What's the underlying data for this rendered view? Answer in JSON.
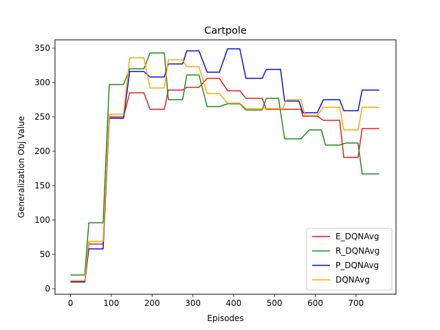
{
  "chart_data": {
    "type": "line",
    "title": "Cartpole",
    "xlabel": "Episodes",
    "ylabel": "Generalization Obj Value",
    "xlim": [
      -38,
      798
    ],
    "ylim": [
      -8,
      362
    ],
    "xticks": [
      0,
      100,
      200,
      300,
      400,
      500,
      600,
      700
    ],
    "yticks": [
      0,
      50,
      100,
      150,
      200,
      250,
      300,
      350
    ],
    "grid": false,
    "legend_position": "lower-right",
    "series": [
      {
        "name": "E_DQNAvg",
        "color": "#e31a1c",
        "points": [
          [
            0,
            10
          ],
          [
            35,
            10
          ],
          [
            45,
            65
          ],
          [
            80,
            65
          ],
          [
            95,
            250
          ],
          [
            130,
            250
          ],
          [
            145,
            285
          ],
          [
            180,
            285
          ],
          [
            195,
            261
          ],
          [
            230,
            261
          ],
          [
            240,
            289
          ],
          [
            275,
            289
          ],
          [
            285,
            293
          ],
          [
            315,
            293
          ],
          [
            335,
            306
          ],
          [
            365,
            306
          ],
          [
            385,
            288
          ],
          [
            415,
            288
          ],
          [
            430,
            277
          ],
          [
            470,
            277
          ],
          [
            480,
            261
          ],
          [
            520,
            261
          ],
          [
            565,
            261
          ],
          [
            570,
            251
          ],
          [
            605,
            251
          ],
          [
            620,
            245
          ],
          [
            660,
            245
          ],
          [
            670,
            191
          ],
          [
            705,
            191
          ],
          [
            715,
            233
          ],
          [
            757,
            233
          ]
        ]
      },
      {
        "name": "R_DQNAvg",
        "color": "#1a8a1a",
        "points": [
          [
            0,
            20
          ],
          [
            35,
            20
          ],
          [
            45,
            96
          ],
          [
            80,
            96
          ],
          [
            95,
            297
          ],
          [
            130,
            297
          ],
          [
            145,
            320
          ],
          [
            180,
            320
          ],
          [
            195,
            343
          ],
          [
            230,
            343
          ],
          [
            240,
            275
          ],
          [
            275,
            275
          ],
          [
            285,
            311
          ],
          [
            315,
            311
          ],
          [
            335,
            265
          ],
          [
            365,
            265
          ],
          [
            385,
            269
          ],
          [
            415,
            269
          ],
          [
            430,
            260
          ],
          [
            470,
            260
          ],
          [
            480,
            277
          ],
          [
            510,
            277
          ],
          [
            525,
            218
          ],
          [
            565,
            218
          ],
          [
            585,
            231
          ],
          [
            615,
            231
          ],
          [
            625,
            209
          ],
          [
            660,
            209
          ],
          [
            675,
            212
          ],
          [
            705,
            212
          ],
          [
            715,
            167
          ],
          [
            757,
            167
          ]
        ]
      },
      {
        "name": "P_DQNAvg",
        "color": "#0b0bd6",
        "points": [
          [
            0,
            10
          ],
          [
            35,
            10
          ],
          [
            45,
            58
          ],
          [
            80,
            58
          ],
          [
            95,
            248
          ],
          [
            130,
            248
          ],
          [
            145,
            316
          ],
          [
            180,
            316
          ],
          [
            195,
            308
          ],
          [
            230,
            308
          ],
          [
            240,
            327
          ],
          [
            275,
            327
          ],
          [
            285,
            346
          ],
          [
            315,
            346
          ],
          [
            335,
            315
          ],
          [
            365,
            315
          ],
          [
            385,
            349
          ],
          [
            415,
            349
          ],
          [
            430,
            306
          ],
          [
            470,
            306
          ],
          [
            480,
            319
          ],
          [
            515,
            319
          ],
          [
            525,
            273
          ],
          [
            560,
            273
          ],
          [
            570,
            256
          ],
          [
            605,
            256
          ],
          [
            620,
            275
          ],
          [
            660,
            275
          ],
          [
            670,
            259
          ],
          [
            705,
            259
          ],
          [
            715,
            289
          ],
          [
            757,
            289
          ]
        ]
      },
      {
        "name": "DQNAvg",
        "color": "#ffa500",
        "points": [
          [
            0,
            12
          ],
          [
            35,
            12
          ],
          [
            45,
            69
          ],
          [
            80,
            69
          ],
          [
            95,
            254
          ],
          [
            130,
            254
          ],
          [
            145,
            336
          ],
          [
            180,
            336
          ],
          [
            195,
            292
          ],
          [
            230,
            292
          ],
          [
            240,
            333
          ],
          [
            275,
            333
          ],
          [
            285,
            323
          ],
          [
            315,
            323
          ],
          [
            335,
            284
          ],
          [
            365,
            284
          ],
          [
            385,
            270
          ],
          [
            415,
            270
          ],
          [
            430,
            262
          ],
          [
            470,
            262
          ],
          [
            480,
            262
          ],
          [
            520,
            262
          ],
          [
            530,
            275
          ],
          [
            565,
            275
          ],
          [
            575,
            252
          ],
          [
            605,
            252
          ],
          [
            620,
            264
          ],
          [
            660,
            264
          ],
          [
            670,
            231
          ],
          [
            705,
            231
          ],
          [
            715,
            264
          ],
          [
            757,
            264
          ]
        ]
      }
    ]
  }
}
